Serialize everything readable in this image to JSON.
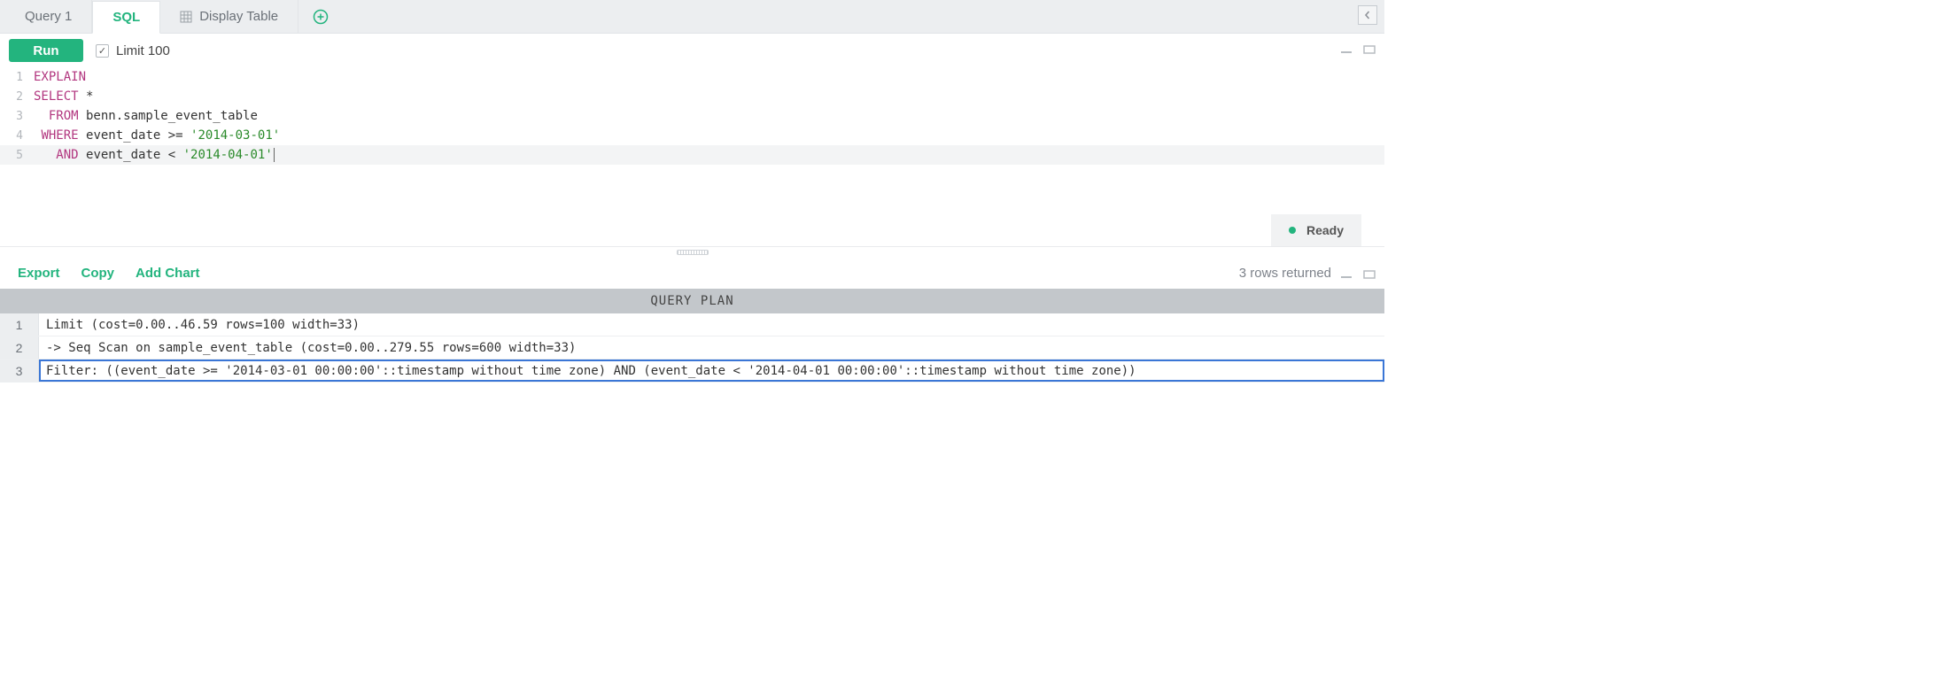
{
  "tabs": {
    "query_label": "Query 1",
    "sql_label": "SQL",
    "display_label": "Display Table"
  },
  "runbar": {
    "run_label": "Run",
    "limit_label": "Limit 100",
    "limit_checked": true
  },
  "status": {
    "ready_label": "Ready"
  },
  "editor": {
    "lines": [
      {
        "n": 1,
        "tokens": [
          [
            "kw",
            "EXPLAIN"
          ]
        ]
      },
      {
        "n": 2,
        "tokens": [
          [
            "kw",
            "SELECT"
          ],
          [
            "",
            " *"
          ]
        ]
      },
      {
        "n": 3,
        "tokens": [
          [
            "",
            "  "
          ],
          [
            "kw",
            "FROM"
          ],
          [
            "",
            " benn.sample_event_table"
          ]
        ]
      },
      {
        "n": 4,
        "tokens": [
          [
            "",
            " "
          ],
          [
            "kw",
            "WHERE"
          ],
          [
            "",
            " event_date >= "
          ],
          [
            "str",
            "'2014-03-01'"
          ]
        ]
      },
      {
        "n": 5,
        "tokens": [
          [
            "",
            "   "
          ],
          [
            "kw",
            "AND"
          ],
          [
            "",
            " event_date < "
          ],
          [
            "str",
            "'2014-04-01'"
          ]
        ],
        "cursor": true
      }
    ]
  },
  "results": {
    "toolbar": {
      "export": "Export",
      "copy": "Copy",
      "add_chart": "Add Chart",
      "rows_returned": "3 rows returned"
    },
    "column_header": "QUERY PLAN",
    "rows": [
      "Limit (cost=0.00..46.59 rows=100 width=33)",
      "-> Seq Scan on sample_event_table (cost=0.00..279.55 rows=600 width=33)",
      "Filter: ((event_date >= '2014-03-01 00:00:00'::timestamp without time zone) AND (event_date < '2014-04-01 00:00:00'::timestamp without time zone))"
    ],
    "selected_row_index": 2
  },
  "colors": {
    "accent_green": "#23b47e",
    "keyword": "#b2367f",
    "string": "#2a8a2a",
    "tabstrip_bg": "#eceef0",
    "header_bg": "#c3c7cb",
    "selection_outline": "#3a76d6"
  }
}
